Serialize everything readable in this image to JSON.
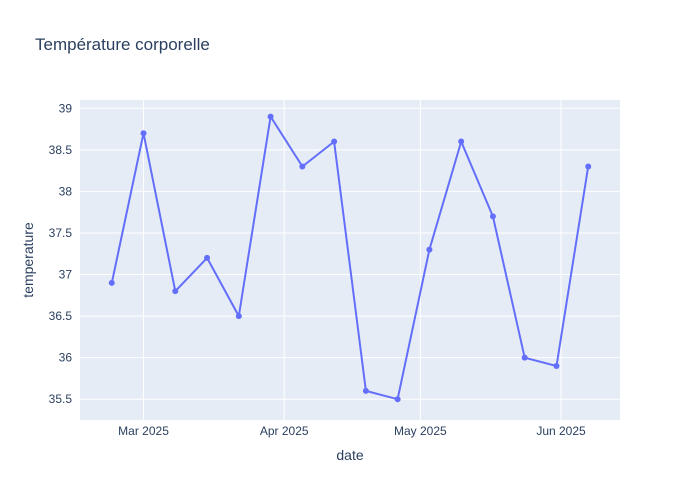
{
  "chart_data": {
    "type": "line",
    "title": "Température corporelle",
    "xlabel": "date",
    "ylabel": "temperature",
    "x_dates": [
      "2025-02-22",
      "2025-03-01",
      "2025-03-08",
      "2025-03-15",
      "2025-03-22",
      "2025-03-29",
      "2025-04-05",
      "2025-04-12",
      "2025-04-19",
      "2025-04-26",
      "2025-05-03",
      "2025-05-10",
      "2025-05-17",
      "2025-05-24",
      "2025-05-31",
      "2025-06-07"
    ],
    "series": [
      {
        "values": [
          36.9,
          38.7,
          36.8,
          37.2,
          36.5,
          38.9,
          38.3,
          38.6,
          35.6,
          35.5,
          37.3,
          38.6,
          37.7,
          36.0,
          35.9,
          38.3
        ],
        "color": "#636efa"
      }
    ],
    "xlim": [
      "2025-02-15",
      "2025-06-14"
    ],
    "ylim": [
      35.25,
      39.1
    ],
    "x_ticks": [
      {
        "date": "2025-03-01",
        "label": "Mar 2025"
      },
      {
        "date": "2025-04-01",
        "label": "Apr 2025"
      },
      {
        "date": "2025-05-01",
        "label": "May 2025"
      },
      {
        "date": "2025-06-01",
        "label": "Jun 2025"
      }
    ],
    "y_ticks": [
      35.5,
      36,
      36.5,
      37,
      37.5,
      38,
      38.5,
      39
    ],
    "y_tick_labels": [
      "35.5",
      "36",
      "36.5",
      "37",
      "37.5",
      "38",
      "38.5",
      "39"
    ],
    "grid": true,
    "colors": {
      "plot_bg": "#e5ecf6",
      "grid": "#ffffff",
      "text": "#2a3f5f"
    }
  }
}
